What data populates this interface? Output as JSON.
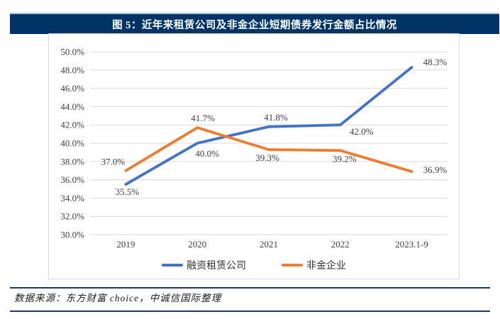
{
  "title": {
    "text": "图 5：近年来租赁公司及非金企业短期债券发行金额占比情况"
  },
  "footer": {
    "source_text": "数据来源：东方财富 choice，中诚信国际整理"
  },
  "colors": {
    "title_bar_bg": "#003366",
    "title_bar_top_border": "#AEBFD4",
    "series_blue": "#4472C4",
    "series_orange": "#ED7D31",
    "gridline": "#D9D9D9",
    "axis_text": "#404040",
    "data_label_text": "#404040",
    "footer_rule": "#1F3864"
  },
  "chart_data": {
    "type": "line",
    "title": "近年来租赁公司及非金企业短期债券发行金额占比情况",
    "categories": [
      "2019",
      "2020",
      "2021",
      "2022",
      "2023.1-9"
    ],
    "series": [
      {
        "name": "融资租赁公司",
        "color": "#4472C4",
        "values": [
          35.5,
          40.0,
          41.8,
          42.0,
          48.3
        ],
        "labels": [
          "35.5%",
          "40.0%",
          "41.8%",
          "42.0%",
          "48.3%"
        ]
      },
      {
        "name": "非金企业",
        "color": "#ED7D31",
        "values": [
          37.0,
          41.7,
          39.3,
          39.2,
          36.9
        ],
        "labels": [
          "37.0%",
          "41.7%",
          "39.3%",
          "39.2%",
          "36.9%"
        ]
      }
    ],
    "xlabel": "",
    "ylabel": "",
    "ylim": [
      30,
      50
    ],
    "ytick_step": 2,
    "ytick_labels": [
      "30.0%",
      "32.0%",
      "34.0%",
      "36.0%",
      "38.0%",
      "40.0%",
      "42.0%",
      "44.0%",
      "46.0%",
      "48.0%",
      "50.0%"
    ],
    "grid": true,
    "legend_position": "bottom"
  }
}
